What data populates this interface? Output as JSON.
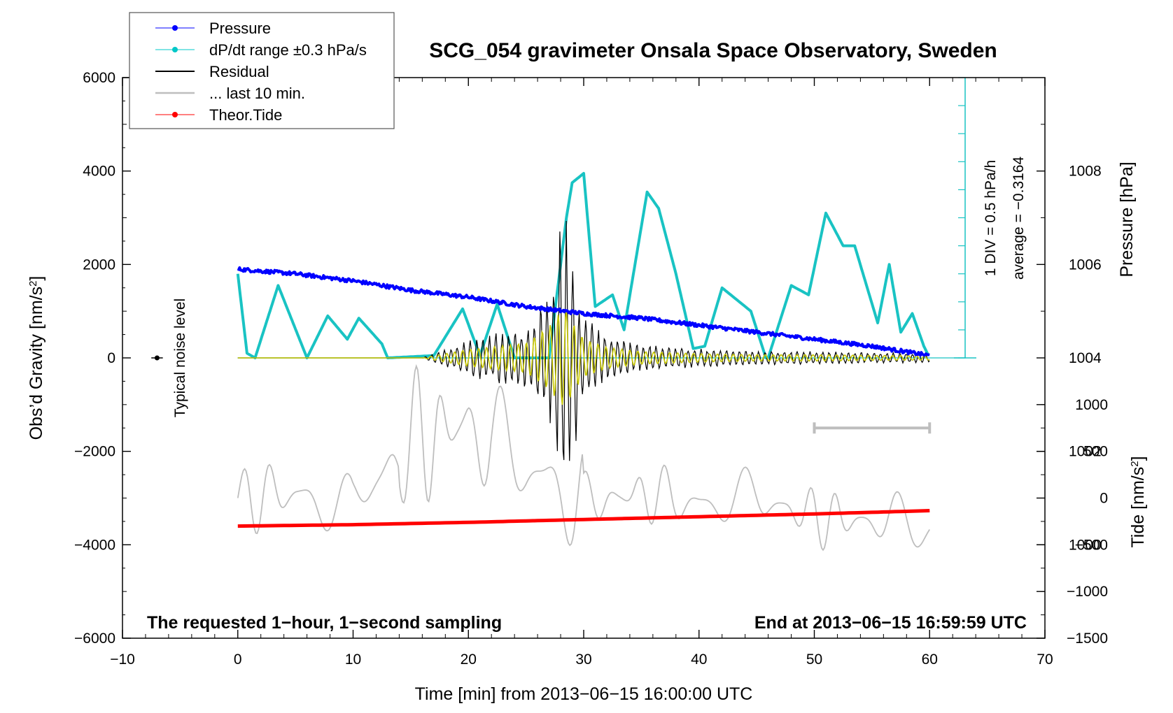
{
  "chart_data": {
    "type": "line",
    "title": "SCG_054 gravimeter Onsala Space Observatory, Sweden",
    "xlabel": "Time [min] from 2013−06−15 16:00:00 UTC",
    "ylabel_left": "Obs’d Gravity [nm/s",
    "ylabel_right_top": "Pressure [hPa]",
    "ylabel_right_bottom": "Tide [nm/s",
    "sup2": "2",
    "close_bracket": "]",
    "xlim": [
      -10,
      70
    ],
    "ylim_left": [
      -6000,
      6000
    ],
    "ylim_pressure": [
      998,
      1010
    ],
    "ylim_tide": [
      -1500,
      1000
    ],
    "x_ticks": [
      "−10",
      "0",
      "10",
      "20",
      "30",
      "40",
      "50",
      "60",
      "70"
    ],
    "x_tick_values": [
      -10,
      0,
      10,
      20,
      30,
      40,
      50,
      60,
      70
    ],
    "y_left_ticks": [
      "6000",
      "4000",
      "2000",
      "0",
      "−2000",
      "−4000",
      "−6000"
    ],
    "y_left_tick_values": [
      6000,
      4000,
      2000,
      0,
      -2000,
      -4000,
      -6000
    ],
    "pressure_ticks": [
      "1008",
      "1006",
      "1004",
      "1002",
      "1000"
    ],
    "pressure_tick_values": [
      1008,
      1006,
      1004,
      1002,
      1000
    ],
    "tide_ticks": [
      "1000",
      "500",
      "0",
      "−500",
      "−1000",
      "−1500"
    ],
    "tide_tick_values": [
      1000,
      500,
      0,
      -500,
      -1000,
      -1500
    ],
    "dpdt_scale_label": "1 DIV = 0.5 hPa/h",
    "dpdt_average_label": "average = −0.3164",
    "noise_label": "Typical noise level",
    "bottom_left_note": "The requested 1−hour, 1−second sampling",
    "bottom_right_note": "End at 2013−06−15 16:59:59 UTC",
    "legend": [
      {
        "label": "Pressure",
        "color": "#0000ff",
        "marker": "dot"
      },
      {
        "label": "dP/dt range ±0.3 hPa/s",
        "color": "#00c8c8",
        "marker": "dot"
      },
      {
        "label": "Residual",
        "color": "#000000",
        "marker": "none"
      },
      {
        "label": "... last 10 min.",
        "color": "#bebebe",
        "marker": "none"
      },
      {
        "label": "Theor.Tide",
        "color": "#ff0000",
        "marker": "dot"
      }
    ],
    "colors": {
      "pressure": "#0000ff",
      "dpdt": "#19c3c3",
      "residual": "#000000",
      "last10": "#bebebe",
      "tide": "#ff0000",
      "filtered": "#c8c800"
    },
    "series": [
      {
        "name": "Pressure",
        "unit": "hPa",
        "x": [
          0,
          5,
          10,
          15,
          20,
          25,
          30,
          35,
          40,
          45,
          50,
          55,
          60
        ],
        "values": [
          1005.9,
          1005.8,
          1005.65,
          1005.45,
          1005.3,
          1005.1,
          1004.95,
          1004.85,
          1004.7,
          1004.55,
          1004.4,
          1004.25,
          1004.05
        ]
      },
      {
        "name": "dP/dt range ±0.3 hPa/s",
        "unit": "nm/s2 (plot units)",
        "x": [
          0,
          0.8,
          1.5,
          3.5,
          6,
          7.8,
          9.5,
          10.5,
          12.5,
          13,
          17,
          19.5,
          21,
          22.5,
          24,
          27,
          28.5,
          29,
          30,
          31,
          32.5,
          33.5,
          35.5,
          36.5,
          38,
          39.5,
          40.5,
          42,
          44.5,
          45.8,
          46,
          48,
          49.5,
          51,
          52.5,
          53.5,
          55.5,
          56.5,
          57.5,
          58.5,
          59.5,
          60
        ],
        "values": [
          1800,
          100,
          0,
          1550,
          0,
          900,
          400,
          850,
          300,
          0,
          50,
          1050,
          50,
          1150,
          0,
          0,
          3000,
          3750,
          3950,
          1100,
          1350,
          600,
          3550,
          3200,
          1800,
          200,
          250,
          1500,
          1000,
          0,
          1,
          1550,
          1350,
          3100,
          2400,
          2400,
          750,
          2000,
          550,
          950,
          250,
          0
        ]
      },
      {
        "name": "Residual",
        "unit": "nm/s2",
        "x": [
          0,
          16,
          20,
          25,
          27,
          28,
          28.5,
          29,
          30,
          32,
          35,
          40,
          45,
          50,
          55,
          60
        ],
        "values": [
          0,
          0,
          400,
          700,
          1500,
          2200,
          2300,
          1700,
          900,
          500,
          300,
          200,
          150,
          150,
          120,
          100
        ]
      },
      {
        "name": "... last 10 min.",
        "unit": "nm/s2 (plot units)",
        "x": [
          0,
          5,
          10,
          15,
          20,
          25,
          30,
          35,
          40,
          45,
          50,
          55,
          60
        ],
        "values": [
          -3000,
          -2900,
          -3200,
          -1800,
          -1400,
          -2300,
          -3100,
          -2900,
          -3100,
          -3000,
          -3400,
          -3500,
          -3600
        ]
      },
      {
        "name": "Theor.Tide",
        "unit": "nm/s2",
        "x": [
          0,
          10,
          20,
          30,
          40,
          50,
          60
        ],
        "values": [
          -300,
          -285,
          -260,
          -230,
          -200,
          -170,
          -135
        ]
      }
    ]
  }
}
